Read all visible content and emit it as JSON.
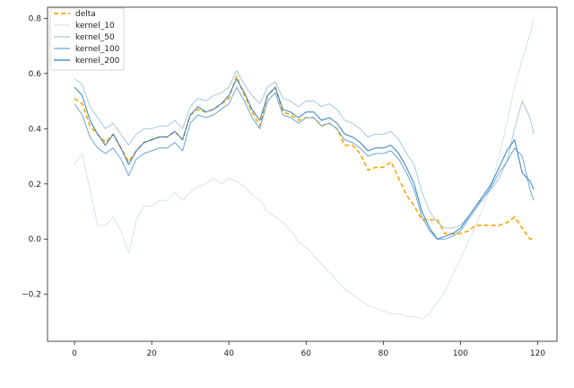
{
  "chart_data": {
    "type": "line",
    "title": "",
    "xlabel": "",
    "ylabel": "",
    "xlim": [
      -7,
      125
    ],
    "ylim": [
      -0.37,
      0.84
    ],
    "xticks": [
      0,
      20,
      40,
      60,
      80,
      100,
      120
    ],
    "yticks": [
      -0.2,
      0.0,
      0.2,
      0.4,
      0.6,
      0.8
    ],
    "xtick_labels": [
      "0",
      "20",
      "40",
      "60",
      "80",
      "100",
      "120"
    ],
    "ytick_labels": [
      "−0.2",
      "0.0",
      "0.2",
      "0.4",
      "0.6",
      "0.8"
    ],
    "grid": false,
    "legend_position": "top-left",
    "series": [
      {
        "name": "delta",
        "color": "#FFA500",
        "dashed": true,
        "x": [
          0,
          2,
          4,
          6,
          8,
          10,
          12,
          14,
          16,
          18,
          20,
          22,
          24,
          26,
          28,
          30,
          32,
          34,
          36,
          38,
          40,
          42,
          44,
          46,
          48,
          50,
          52,
          54,
          56,
          58,
          60,
          62,
          64,
          66,
          68,
          70,
          72,
          74,
          76,
          78,
          80,
          82,
          84,
          86,
          88,
          90,
          92,
          94,
          96,
          98,
          100,
          102,
          104,
          106,
          108,
          110,
          112,
          114,
          116,
          118,
          119
        ],
        "y": [
          0.51,
          0.49,
          0.41,
          0.38,
          0.35,
          0.38,
          0.33,
          0.28,
          0.32,
          0.35,
          0.36,
          0.37,
          0.37,
          0.39,
          0.36,
          0.45,
          0.47,
          0.46,
          0.47,
          0.49,
          0.51,
          0.59,
          0.52,
          0.46,
          0.41,
          0.52,
          0.55,
          0.46,
          0.45,
          0.43,
          0.44,
          0.44,
          0.41,
          0.42,
          0.4,
          0.34,
          0.34,
          0.31,
          0.25,
          0.26,
          0.26,
          0.28,
          0.22,
          0.16,
          0.12,
          0.07,
          0.07,
          0.07,
          0.02,
          0.02,
          0.02,
          0.03,
          0.05,
          0.05,
          0.05,
          0.05,
          0.06,
          0.08,
          0.04,
          0.0,
          0.0
        ]
      },
      {
        "name": "kernel_10",
        "color": "#D6E3F0",
        "dashed": false,
        "x": [
          0,
          2,
          4,
          6,
          8,
          10,
          12,
          14,
          16,
          18,
          20,
          22,
          24,
          26,
          28,
          30,
          32,
          34,
          36,
          38,
          40,
          42,
          44,
          46,
          48,
          50,
          52,
          54,
          56,
          58,
          60,
          62,
          64,
          66,
          68,
          70,
          72,
          74,
          76,
          78,
          80,
          82,
          84,
          86,
          88,
          90,
          92,
          94,
          96,
          98,
          100,
          102,
          104,
          106,
          108,
          110,
          112,
          114,
          116,
          118,
          119
        ],
        "y": [
          0.27,
          0.31,
          0.18,
          0.05,
          0.05,
          0.08,
          0.03,
          -0.05,
          0.07,
          0.12,
          0.12,
          0.14,
          0.14,
          0.17,
          0.14,
          0.17,
          0.19,
          0.2,
          0.22,
          0.2,
          0.22,
          0.21,
          0.19,
          0.16,
          0.14,
          0.1,
          0.08,
          0.06,
          0.03,
          -0.01,
          -0.03,
          -0.06,
          -0.09,
          -0.12,
          -0.15,
          -0.18,
          -0.2,
          -0.22,
          -0.24,
          -0.25,
          -0.26,
          -0.27,
          -0.27,
          -0.28,
          -0.28,
          -0.29,
          -0.27,
          -0.23,
          -0.19,
          -0.13,
          -0.07,
          -0.01,
          0.05,
          0.12,
          0.2,
          0.3,
          0.42,
          0.55,
          0.65,
          0.74,
          0.8
        ]
      },
      {
        "name": "kernel_50",
        "color": "#A9C6E2",
        "dashed": false,
        "x": [
          0,
          2,
          4,
          6,
          8,
          10,
          12,
          14,
          16,
          18,
          20,
          22,
          24,
          26,
          28,
          30,
          32,
          34,
          36,
          38,
          40,
          42,
          44,
          46,
          48,
          50,
          52,
          54,
          56,
          58,
          60,
          62,
          64,
          66,
          68,
          70,
          72,
          74,
          76,
          78,
          80,
          82,
          84,
          86,
          88,
          90,
          92,
          94,
          96,
          98,
          100,
          102,
          104,
          106,
          108,
          110,
          112,
          114,
          116,
          118,
          119
        ],
        "y": [
          0.58,
          0.56,
          0.48,
          0.44,
          0.4,
          0.42,
          0.38,
          0.34,
          0.38,
          0.4,
          0.4,
          0.41,
          0.41,
          0.43,
          0.4,
          0.48,
          0.51,
          0.5,
          0.52,
          0.53,
          0.55,
          0.61,
          0.56,
          0.52,
          0.49,
          0.55,
          0.57,
          0.51,
          0.5,
          0.48,
          0.5,
          0.5,
          0.48,
          0.49,
          0.47,
          0.43,
          0.42,
          0.4,
          0.37,
          0.38,
          0.38,
          0.39,
          0.36,
          0.31,
          0.27,
          0.17,
          0.1,
          0.06,
          0.04,
          0.04,
          0.05,
          0.08,
          0.12,
          0.15,
          0.18,
          0.22,
          0.28,
          0.4,
          0.5,
          0.44,
          0.38
        ]
      },
      {
        "name": "kernel_100",
        "color": "#6CA6D5",
        "dashed": false,
        "x": [
          0,
          2,
          4,
          6,
          8,
          10,
          12,
          14,
          16,
          18,
          20,
          22,
          24,
          26,
          28,
          30,
          32,
          34,
          36,
          38,
          40,
          42,
          44,
          46,
          48,
          50,
          52,
          54,
          56,
          58,
          60,
          62,
          64,
          66,
          68,
          70,
          72,
          74,
          76,
          78,
          80,
          82,
          84,
          86,
          88,
          90,
          92,
          94,
          96,
          98,
          100,
          102,
          104,
          106,
          108,
          110,
          112,
          114,
          116,
          118,
          119
        ],
        "y": [
          0.49,
          0.45,
          0.37,
          0.33,
          0.31,
          0.33,
          0.29,
          0.23,
          0.29,
          0.31,
          0.32,
          0.33,
          0.33,
          0.35,
          0.32,
          0.42,
          0.45,
          0.44,
          0.45,
          0.47,
          0.49,
          0.55,
          0.5,
          0.44,
          0.4,
          0.5,
          0.53,
          0.45,
          0.44,
          0.42,
          0.44,
          0.44,
          0.41,
          0.42,
          0.4,
          0.36,
          0.35,
          0.33,
          0.3,
          0.31,
          0.31,
          0.32,
          0.29,
          0.24,
          0.18,
          0.08,
          0.03,
          0.0,
          0.0,
          0.01,
          0.03,
          0.07,
          0.11,
          0.15,
          0.19,
          0.24,
          0.28,
          0.33,
          0.3,
          0.18,
          0.14
        ]
      },
      {
        "name": "kernel_200",
        "color": "#2F7FC0",
        "dashed": false,
        "x": [
          0,
          2,
          4,
          6,
          8,
          10,
          12,
          14,
          16,
          18,
          20,
          22,
          24,
          26,
          28,
          30,
          32,
          34,
          36,
          38,
          40,
          42,
          44,
          46,
          48,
          50,
          52,
          54,
          56,
          58,
          60,
          62,
          64,
          66,
          68,
          70,
          72,
          74,
          76,
          78,
          80,
          82,
          84,
          86,
          88,
          90,
          92,
          94,
          96,
          98,
          100,
          102,
          104,
          106,
          108,
          110,
          112,
          114,
          116,
          118,
          119
        ],
        "y": [
          0.55,
          0.52,
          0.43,
          0.38,
          0.34,
          0.38,
          0.33,
          0.27,
          0.32,
          0.35,
          0.36,
          0.37,
          0.37,
          0.39,
          0.36,
          0.45,
          0.48,
          0.46,
          0.47,
          0.49,
          0.52,
          0.58,
          0.53,
          0.47,
          0.43,
          0.52,
          0.55,
          0.47,
          0.46,
          0.44,
          0.46,
          0.46,
          0.43,
          0.44,
          0.42,
          0.38,
          0.37,
          0.35,
          0.32,
          0.33,
          0.33,
          0.34,
          0.31,
          0.26,
          0.2,
          0.1,
          0.04,
          0.0,
          0.01,
          0.02,
          0.04,
          0.08,
          0.12,
          0.16,
          0.2,
          0.26,
          0.32,
          0.36,
          0.24,
          0.21,
          0.18
        ]
      }
    ]
  }
}
